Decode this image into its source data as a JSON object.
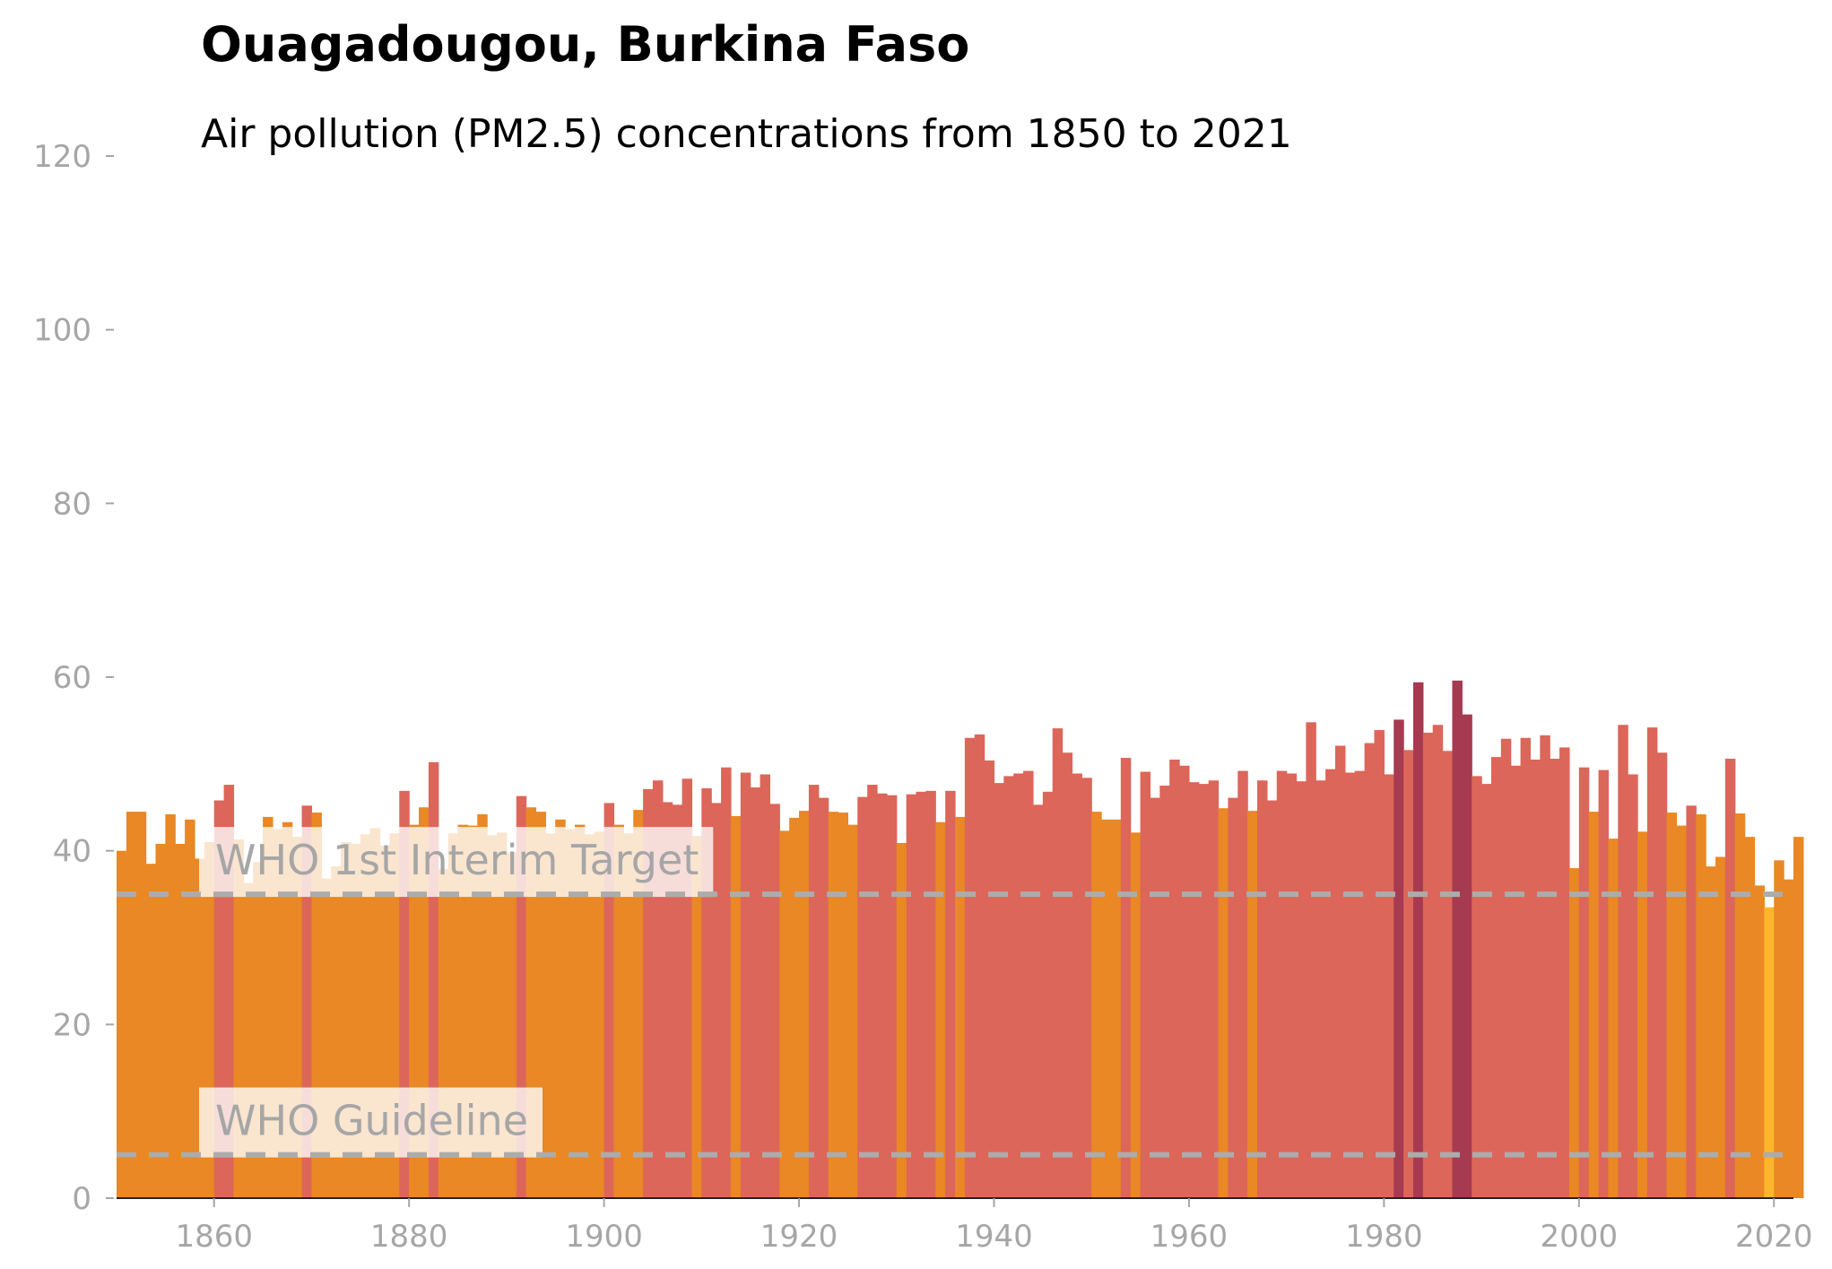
{
  "header": {
    "title": "Ouagadougou, Burkina Faso",
    "subtitle": "Air pollution (PM2.5) concentrations from 1850 to 2021"
  },
  "colors": {
    "band_low": "#fdb62c",
    "band_mid": "#e98824",
    "band_high": "#dc6659",
    "band_very_high": "#a63a50",
    "reference_line": "#acacac",
    "tick_text": "#a6a6a6",
    "label_background": "#ffffff"
  },
  "chart_data": {
    "type": "bar",
    "title": "Ouagadougou, Burkina Faso",
    "subtitle": "Air pollution (PM2.5) concentrations from 1850 to 2021",
    "x_start": 1850,
    "x_end": 2021,
    "xlim": [
      1850,
      2022
    ],
    "ylim": [
      0,
      120
    ],
    "xticks": [
      1860,
      1880,
      1900,
      1920,
      1940,
      1960,
      1980,
      2000,
      2020
    ],
    "yticks": [
      0,
      20,
      40,
      60,
      80,
      100,
      120
    ],
    "grid": false,
    "color_bands": [
      {
        "max": 35,
        "color": "#fdb62c"
      },
      {
        "max": 45,
        "color": "#e98824"
      },
      {
        "max": 55,
        "color": "#dc6659"
      },
      {
        "max": 999,
        "color": "#a63a50"
      }
    ],
    "reference_lines": [
      {
        "label": "WHO 1st Interim Target",
        "value": 35
      },
      {
        "label": "WHO Guideline",
        "value": 5
      }
    ],
    "values": [
      40.0,
      44.5,
      44.5,
      38.5,
      40.8,
      44.2,
      40.8,
      43.6,
      39.1,
      41.0,
      45.8,
      47.6,
      41.3,
      36.3,
      38.7,
      43.9,
      42.5,
      43.3,
      41.6,
      45.2,
      44.4,
      36.8,
      38.2,
      41.0,
      40.8,
      41.9,
      42.6,
      40.6,
      42.0,
      46.9,
      43.0,
      45.0,
      50.2,
      37.9,
      42.0,
      43.0,
      42.9,
      44.2,
      41.8,
      42.1,
      39.8,
      46.3,
      45.0,
      44.5,
      42.0,
      43.6,
      42.5,
      43.0,
      41.9,
      42.2,
      45.5,
      43.0,
      42.0,
      44.7,
      47.1,
      48.1,
      45.6,
      45.3,
      48.3,
      41.7,
      47.2,
      45.5,
      49.6,
      44.0,
      49.0,
      47.3,
      48.8,
      45.4,
      42.3,
      43.8,
      44.6,
      47.6,
      46.1,
      44.5,
      44.4,
      43.0,
      46.2,
      47.6,
      46.6,
      46.4,
      40.9,
      46.5,
      46.8,
      46.9,
      43.3,
      46.9,
      43.9,
      53.0,
      53.4,
      50.4,
      47.8,
      48.6,
      48.9,
      49.2,
      45.3,
      46.8,
      54.1,
      51.3,
      48.9,
      48.4,
      44.5,
      43.6,
      43.6,
      50.7,
      42.1,
      49.1,
      46.1,
      47.5,
      50.5,
      49.8,
      47.9,
      47.7,
      48.1,
      44.9,
      46.1,
      49.2,
      44.6,
      48.1,
      45.8,
      49.2,
      48.9,
      48.0,
      54.8,
      48.1,
      49.4,
      52.1,
      49.0,
      49.2,
      52.4,
      53.9,
      48.8,
      55.1,
      51.6,
      59.4,
      53.6,
      54.5,
      51.5,
      59.6,
      55.7,
      48.6,
      47.7,
      50.8,
      52.9,
      49.8,
      53.0,
      50.5,
      53.3,
      50.6,
      51.9,
      38.0,
      49.6,
      44.5,
      49.3,
      41.4,
      54.5,
      48.8,
      42.2,
      54.2,
      51.3,
      44.4,
      42.9,
      45.2,
      44.2,
      38.2,
      39.3,
      50.6,
      44.3,
      41.6,
      36.0,
      33.5,
      38.9,
      36.7,
      41.6
    ]
  }
}
